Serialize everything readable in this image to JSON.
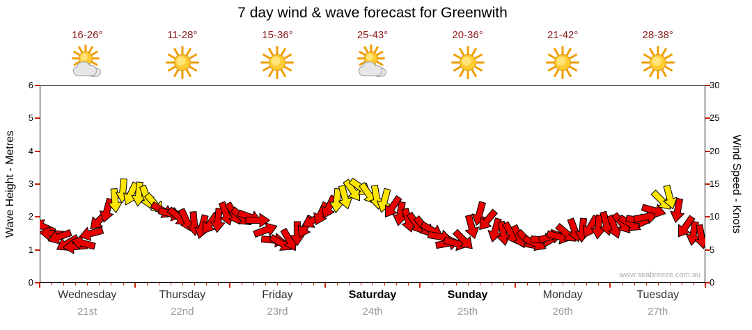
{
  "watermark": "www.seabreeze.com.au",
  "colors": {
    "arrow_red": "#e60000",
    "arrow_yellow": "#ffe600",
    "arrow_outline": "#000000",
    "temp_text": "#8b1c1c",
    "day_text": "#333333",
    "day_text_bold": "#000000",
    "date_text": "#999999",
    "tick": "#cc2200",
    "axis": "#000000",
    "watermark_text": "#b0b0b0",
    "sun": "#ffcc33",
    "sun_ray": "#f09d00",
    "cloud": "#e6e6e6"
  },
  "days": [
    {
      "name": "Wednesday",
      "date": "21st",
      "temp": "16-26°",
      "icon": "sun-cloud",
      "bold": false
    },
    {
      "name": "Thursday",
      "date": "22nd",
      "temp": "11-28°",
      "icon": "sun",
      "bold": false
    },
    {
      "name": "Friday",
      "date": "23rd",
      "temp": "15-36°",
      "icon": "sun",
      "bold": false
    },
    {
      "name": "Saturday",
      "date": "24th",
      "temp": "25-43°",
      "icon": "sun-cloud",
      "bold": true
    },
    {
      "name": "Sunday",
      "date": "25th",
      "temp": "20-36°",
      "icon": "sun",
      "bold": true
    },
    {
      "name": "Monday",
      "date": "26th",
      "temp": "21-42°",
      "icon": "sun",
      "bold": false
    },
    {
      "name": "Tuesday",
      "date": "27th",
      "temp": "28-38°",
      "icon": "sun",
      "bold": false
    }
  ],
  "chart_data": {
    "type": "scatter",
    "subtype": "wind-direction-arrows",
    "title": "7 day wind & wave forecast for Greenwith",
    "categories": [
      "Wednesday 21st",
      "Thursday 22nd",
      "Friday 23rd",
      "Saturday 24th",
      "Sunday 25th",
      "Monday 26th",
      "Tuesday 27th"
    ],
    "points_per_day": 12,
    "grid": false,
    "legend": false,
    "y_axis_left": {
      "label": "Wave Height - Metres",
      "range": [
        0,
        6
      ],
      "step": 1,
      "ticks": [
        0,
        1,
        2,
        3,
        4,
        5,
        6
      ]
    },
    "y_axis_right": {
      "label": "Wind Speed - Knots",
      "range": [
        0,
        30
      ],
      "step": 5,
      "ticks": [
        0,
        5,
        10,
        15,
        20,
        25,
        30
      ]
    },
    "color_rule": {
      "red_below_knots": 12,
      "yellow_at_or_above_knots": 12
    },
    "series_name": "Wind Speed",
    "units": "knots",
    "wind_knots": [
      [
        8.5,
        7.5,
        7,
        6,
        5.5,
        6,
        7.5,
        9.5,
        11,
        12.5,
        14,
        13.5
      ],
      [
        13.5,
        13,
        12,
        11,
        10.5,
        10,
        9.5,
        9,
        8.5,
        9,
        9.5,
        10.5
      ],
      [
        10.5,
        10,
        10,
        9.5,
        8,
        6.5,
        6,
        6.5,
        7.5,
        8.5,
        9.5,
        10.5
      ],
      [
        11.5,
        12.5,
        13,
        14,
        14.5,
        13.5,
        13,
        12.5,
        11.5,
        10.5,
        9.5,
        9
      ],
      [
        8.5,
        8,
        7,
        6,
        6,
        6.5,
        8.5,
        10.5,
        9.5,
        8,
        7.5,
        7.5
      ],
      [
        7,
        6.5,
        6,
        6.5,
        7,
        7,
        7.5,
        8,
        8,
        8.5,
        8.5,
        9
      ],
      [
        8.5,
        9,
        9,
        9.5,
        10,
        11,
        12.5,
        13,
        11,
        8.5,
        7.5,
        7
      ]
    ],
    "wind_dir_deg": [
      [
        205,
        185,
        160,
        150,
        175,
        195,
        165,
        135,
        105,
        85,
        95,
        115
      ],
      [
        95,
        70,
        50,
        30,
        15,
        40,
        65,
        85,
        105,
        125,
        95,
        70
      ],
      [
        60,
        40,
        20,
        0,
        340,
        5,
        30,
        60,
        90,
        120,
        150,
        115
      ],
      [
        115,
        95,
        75,
        55,
        35,
        55,
        80,
        105,
        125,
        100,
        75,
        55
      ],
      [
        50,
        30,
        10,
        350,
        15,
        45,
        75,
        105,
        130,
        105,
        80,
        60
      ],
      [
        65,
        45,
        25,
        5,
        345,
        15,
        40,
        70,
        95,
        120,
        95,
        75
      ],
      [
        70,
        50,
        30,
        10,
        350,
        15,
        45,
        75,
        100,
        125,
        100,
        80
      ]
    ]
  }
}
